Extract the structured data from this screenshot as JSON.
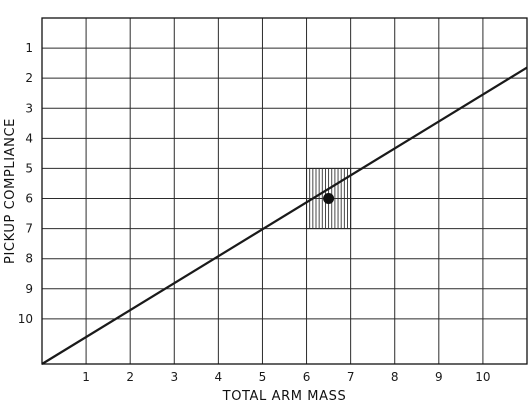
{
  "chart_data": {
    "type": "line",
    "title": "",
    "xlabel": "TOTAL ARM MASS",
    "ylabel": "PICKUP COMPLIANCE",
    "x_tick_labels": [
      "1",
      "2",
      "3",
      "4",
      "5",
      "6",
      "7",
      "8",
      "9",
      "10"
    ],
    "y_tick_labels": [
      "1",
      "2",
      "3",
      "4",
      "5",
      "6",
      "7",
      "8",
      "9",
      "10"
    ],
    "x_ticks": [
      1,
      2,
      3,
      4,
      5,
      6,
      7,
      8,
      9,
      10
    ],
    "y_ticks": [
      1,
      2,
      3,
      4,
      5,
      6,
      7,
      8,
      9,
      10
    ],
    "xlim": [
      0,
      11
    ],
    "ylim": [
      11.5,
      0
    ],
    "y_inverted": true,
    "grid": true,
    "series": [
      {
        "values": [
          [
            0,
            11.5
          ],
          [
            11,
            1.65
          ]
        ]
      }
    ],
    "highlight_region": {
      "x": [
        6,
        7
      ],
      "y": [
        5,
        7
      ]
    },
    "marker_point": [
      6.5,
      6.0
    ]
  }
}
